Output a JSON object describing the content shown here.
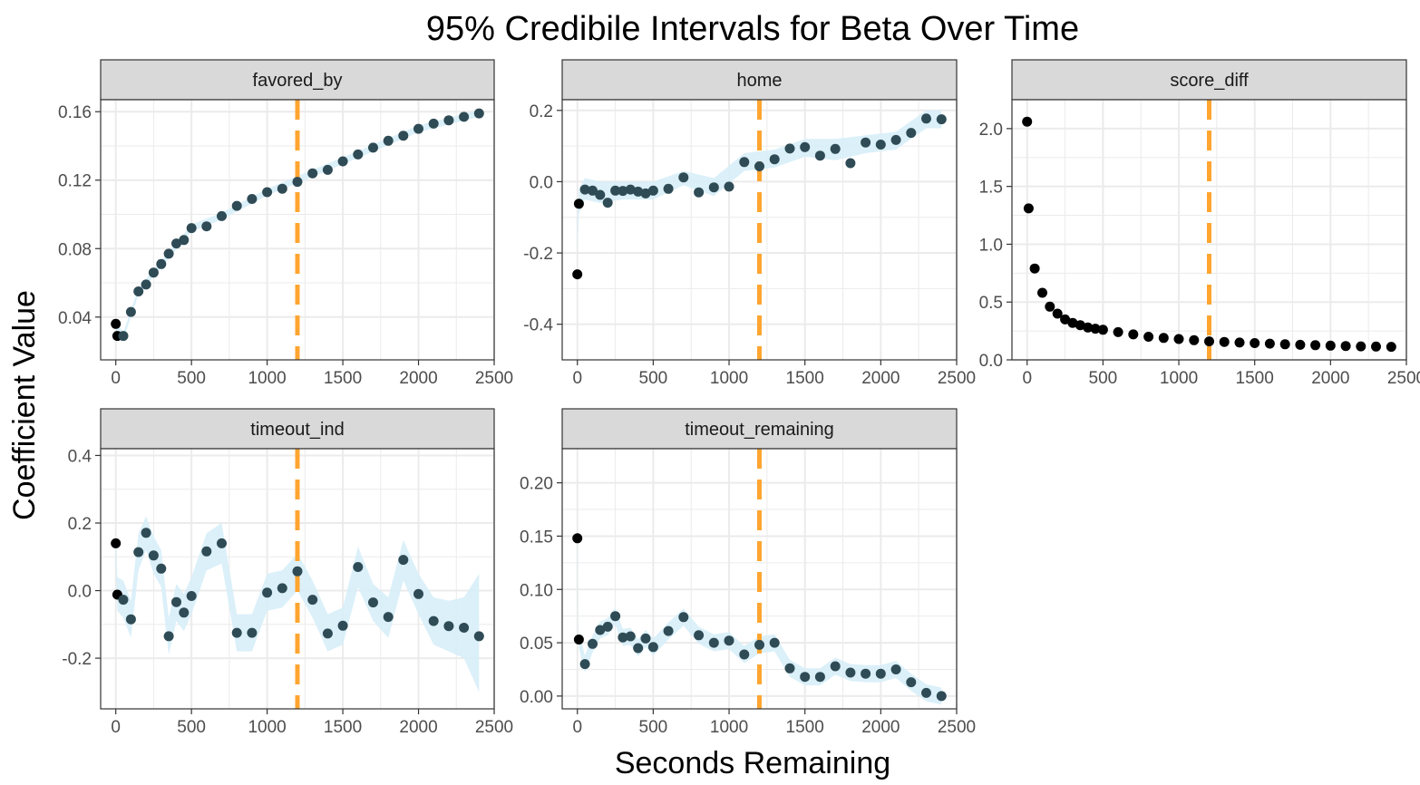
{
  "chart_data": {
    "type": "scatter",
    "title": "95% Credibile Intervals for Beta Over Time",
    "xlabel": "Seconds Remaining",
    "ylabel": "Coefficient Value",
    "xlim": [
      -100,
      2500
    ],
    "xticks": [
      0,
      500,
      1000,
      1500,
      2000,
      2500
    ],
    "reference_line": {
      "x": 1200,
      "color": "#ffa530",
      "style": "dashed"
    },
    "colors": {
      "point": "#000000",
      "point_overlap": "#2f4b55",
      "band": "#d7eef8",
      "strip": "#d9d9d9",
      "grid": "#ebebeb",
      "border": "#333333"
    },
    "panels": [
      {
        "name": "favored_by",
        "ylim": [
          0.015,
          0.167
        ],
        "yticks": [
          0.04,
          0.08,
          0.12,
          0.16
        ],
        "ytick_labels": [
          "0.04",
          "0.08",
          "0.12",
          "0.16"
        ],
        "x": [
          0,
          10,
          50,
          100,
          150,
          200,
          250,
          300,
          350,
          400,
          450,
          500,
          600,
          700,
          800,
          900,
          1000,
          1100,
          1200,
          1300,
          1400,
          1500,
          1600,
          1700,
          1800,
          1900,
          2000,
          2100,
          2200,
          2300,
          2400
        ],
        "y": [
          0.036,
          0.029,
          0.029,
          0.043,
          0.055,
          0.059,
          0.066,
          0.071,
          0.077,
          0.083,
          0.085,
          0.092,
          0.093,
          0.099,
          0.105,
          0.109,
          0.113,
          0.115,
          0.119,
          0.124,
          0.126,
          0.131,
          0.135,
          0.139,
          0.143,
          0.146,
          0.15,
          0.153,
          0.155,
          0.157,
          0.159
        ],
        "band_x": [
          0,
          50,
          150,
          300,
          500,
          700,
          1000,
          1300,
          1600,
          2000,
          2400
        ],
        "band_lo": [
          0.031,
          0.027,
          0.053,
          0.069,
          0.09,
          0.097,
          0.111,
          0.122,
          0.133,
          0.148,
          0.157
        ],
        "band_hi": [
          0.038,
          0.031,
          0.057,
          0.073,
          0.094,
          0.101,
          0.115,
          0.126,
          0.137,
          0.152,
          0.161
        ]
      },
      {
        "name": "home",
        "ylim": [
          -0.5,
          0.23
        ],
        "yticks": [
          -0.4,
          -0.2,
          0.0,
          0.2
        ],
        "ytick_labels": [
          "-0.4",
          "-0.2",
          "0.0",
          "0.2"
        ],
        "x": [
          0,
          10,
          50,
          100,
          150,
          200,
          250,
          300,
          350,
          400,
          450,
          500,
          600,
          700,
          800,
          900,
          1000,
          1100,
          1200,
          1300,
          1400,
          1500,
          1600,
          1700,
          1800,
          1900,
          2000,
          2100,
          2200,
          2300,
          2400
        ],
        "y": [
          -0.26,
          -0.062,
          -0.022,
          -0.025,
          -0.037,
          -0.059,
          -0.025,
          -0.026,
          -0.022,
          -0.028,
          -0.033,
          -0.025,
          -0.02,
          0.012,
          -0.03,
          -0.016,
          -0.014,
          0.055,
          0.043,
          0.063,
          0.093,
          0.097,
          0.073,
          0.092,
          0.052,
          0.11,
          0.104,
          0.117,
          0.137,
          0.177,
          0.175
        ],
        "band_x": [
          0,
          10,
          50,
          150,
          300,
          500,
          700,
          900,
          1100,
          1300,
          1500,
          1700,
          1900,
          2100,
          2300,
          2400
        ],
        "band_lo": [
          -0.2,
          -0.09,
          -0.05,
          -0.06,
          -0.05,
          -0.05,
          -0.01,
          -0.04,
          0.03,
          0.04,
          0.07,
          0.06,
          0.08,
          0.09,
          0.15,
          0.15
        ],
        "band_hi": [
          -0.1,
          -0.02,
          0.01,
          0.0,
          0.0,
          0.0,
          0.03,
          0.01,
          0.08,
          0.09,
          0.12,
          0.12,
          0.13,
          0.14,
          0.2,
          0.2
        ]
      },
      {
        "name": "score_diff",
        "ylim": [
          0.0,
          2.25
        ],
        "yticks": [
          0.0,
          0.5,
          1.0,
          1.5,
          2.0
        ],
        "ytick_labels": [
          "0.0",
          "0.5",
          "1.0",
          "1.5",
          "2.0"
        ],
        "x": [
          0,
          10,
          50,
          100,
          150,
          200,
          250,
          300,
          350,
          400,
          450,
          500,
          600,
          700,
          800,
          900,
          1000,
          1100,
          1200,
          1300,
          1400,
          1500,
          1600,
          1700,
          1800,
          1900,
          2000,
          2100,
          2200,
          2300,
          2400
        ],
        "y": [
          2.06,
          1.31,
          0.79,
          0.58,
          0.46,
          0.4,
          0.35,
          0.32,
          0.3,
          0.28,
          0.27,
          0.26,
          0.24,
          0.22,
          0.2,
          0.19,
          0.18,
          0.17,
          0.16,
          0.155,
          0.15,
          0.145,
          0.14,
          0.135,
          0.13,
          0.127,
          0.123,
          0.12,
          0.117,
          0.115,
          0.113
        ],
        "band_x": [],
        "band_lo": [],
        "band_hi": []
      },
      {
        "name": "timeout_ind",
        "ylim": [
          -0.35,
          0.42
        ],
        "yticks": [
          -0.2,
          0.0,
          0.2,
          0.4
        ],
        "ytick_labels": [
          "-0.2",
          "0.0",
          "0.2",
          "0.4"
        ],
        "x": [
          0,
          10,
          50,
          100,
          150,
          200,
          250,
          300,
          350,
          400,
          450,
          500,
          600,
          700,
          800,
          900,
          1000,
          1100,
          1200,
          1300,
          1400,
          1500,
          1600,
          1700,
          1800,
          1900,
          2000,
          2100,
          2200,
          2300,
          2400
        ],
        "y": [
          0.14,
          -0.012,
          -0.027,
          -0.085,
          0.114,
          0.171,
          0.104,
          0.065,
          -0.135,
          -0.034,
          -0.065,
          -0.016,
          0.116,
          0.14,
          -0.125,
          -0.125,
          -0.006,
          0.007,
          0.057,
          -0.027,
          -0.127,
          -0.104,
          0.07,
          -0.035,
          -0.078,
          0.091,
          -0.01,
          -0.09,
          -0.105,
          -0.11,
          -0.135
        ],
        "band_x": [
          0,
          10,
          50,
          100,
          150,
          200,
          250,
          300,
          350,
          400,
          450,
          500,
          600,
          700,
          800,
          900,
          1000,
          1100,
          1200,
          1300,
          1400,
          1500,
          1600,
          1700,
          1800,
          1900,
          2000,
          2100,
          2200,
          2300,
          2400
        ],
        "band_lo": [
          0.09,
          -0.06,
          -0.08,
          -0.14,
          0.06,
          0.12,
          0.05,
          0.01,
          -0.19,
          -0.09,
          -0.12,
          -0.07,
          0.06,
          0.08,
          -0.18,
          -0.18,
          -0.06,
          -0.05,
          0.0,
          -0.08,
          -0.18,
          -0.16,
          0.01,
          -0.09,
          -0.14,
          0.03,
          -0.07,
          -0.16,
          -0.18,
          -0.2,
          -0.3
        ],
        "band_hi": [
          0.19,
          0.04,
          0.03,
          -0.03,
          0.17,
          0.22,
          0.16,
          0.12,
          -0.08,
          0.02,
          -0.01,
          0.04,
          0.17,
          0.2,
          -0.07,
          -0.07,
          0.05,
          0.06,
          0.11,
          0.03,
          -0.07,
          -0.05,
          0.13,
          0.02,
          -0.02,
          0.15,
          0.05,
          -0.02,
          -0.03,
          -0.02,
          0.05
        ]
      },
      {
        "name": "timeout_remaining",
        "ylim": [
          -0.012,
          0.232
        ],
        "yticks": [
          0.0,
          0.05,
          0.1,
          0.15,
          0.2
        ],
        "ytick_labels": [
          "0.00",
          "0.05",
          "0.10",
          "0.15",
          "0.20"
        ],
        "x": [
          0,
          10,
          50,
          100,
          150,
          200,
          250,
          300,
          350,
          400,
          450,
          500,
          600,
          700,
          800,
          900,
          1000,
          1100,
          1200,
          1300,
          1400,
          1500,
          1600,
          1700,
          1800,
          1900,
          2000,
          2100,
          2200,
          2300,
          2400
        ],
        "y": [
          0.148,
          0.053,
          0.03,
          0.049,
          0.062,
          0.065,
          0.075,
          0.055,
          0.056,
          0.045,
          0.054,
          0.046,
          0.061,
          0.074,
          0.057,
          0.05,
          0.052,
          0.039,
          0.048,
          0.05,
          0.026,
          0.018,
          0.018,
          0.028,
          0.022,
          0.021,
          0.021,
          0.025,
          0.013,
          0.003,
          0.0
        ],
        "band_x": [
          0,
          10,
          50,
          100,
          150,
          200,
          250,
          300,
          350,
          400,
          450,
          500,
          600,
          700,
          800,
          900,
          1000,
          1100,
          1200,
          1300,
          1400,
          1500,
          1600,
          1700,
          1800,
          1900,
          2000,
          2100,
          2200,
          2300,
          2400
        ],
        "band_lo": [
          0.14,
          0.045,
          0.022,
          0.041,
          0.054,
          0.057,
          0.067,
          0.047,
          0.048,
          0.037,
          0.046,
          0.038,
          0.053,
          0.066,
          0.049,
          0.042,
          0.044,
          0.031,
          0.04,
          0.042,
          0.018,
          0.01,
          0.01,
          0.02,
          0.014,
          0.013,
          0.013,
          0.017,
          0.005,
          -0.005,
          -0.008
        ],
        "band_hi": [
          0.156,
          0.061,
          0.038,
          0.057,
          0.07,
          0.073,
          0.083,
          0.063,
          0.064,
          0.053,
          0.062,
          0.054,
          0.069,
          0.082,
          0.065,
          0.058,
          0.06,
          0.047,
          0.056,
          0.058,
          0.034,
          0.026,
          0.026,
          0.036,
          0.03,
          0.029,
          0.029,
          0.033,
          0.021,
          0.011,
          0.008
        ]
      }
    ]
  }
}
